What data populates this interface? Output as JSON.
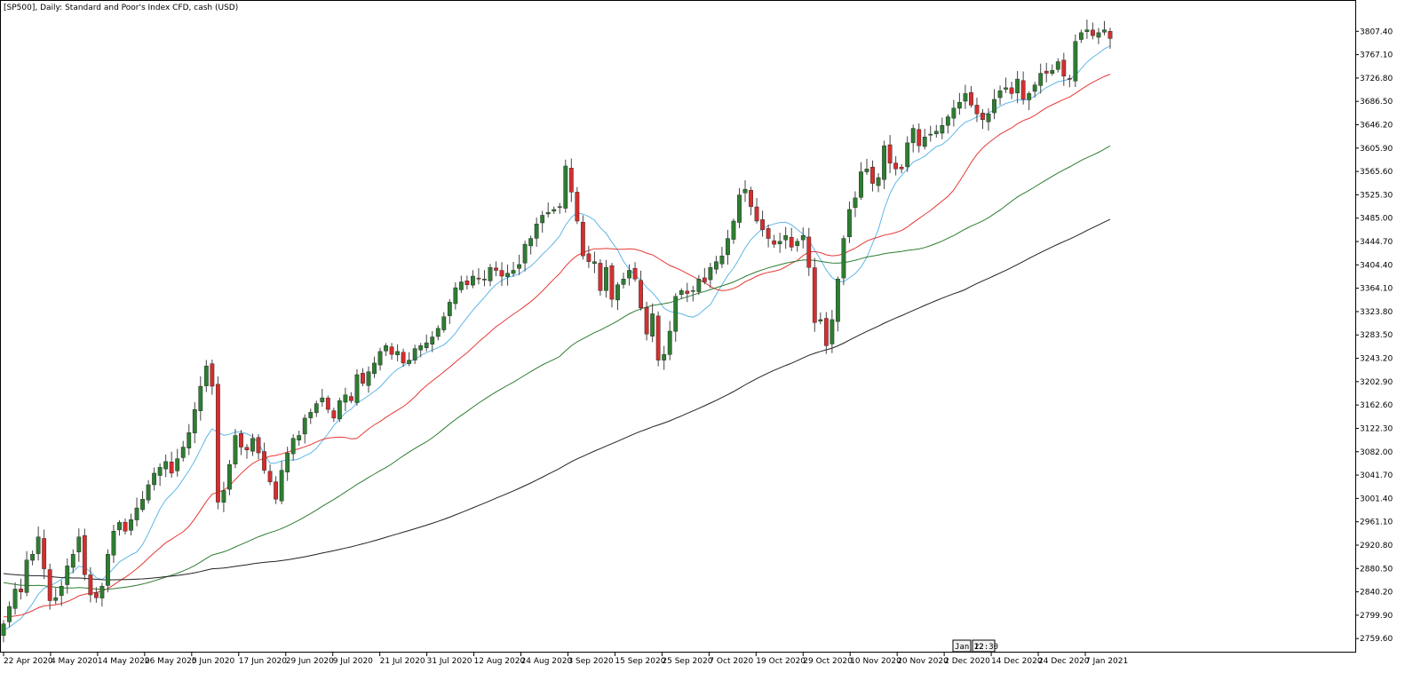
{
  "window": {
    "title": "[SP500], Daily:  Standard and Poor's Index CFD, cash (USD)"
  },
  "colors": {
    "bull": "#2e7d32",
    "bear": "#d32f2f",
    "wick": "#444444",
    "ma_fast": "#5fb7e8",
    "ma_mid": "#e53935",
    "ma_slow": "#2e7d32",
    "ma_long": "#222222",
    "axis": "#000000"
  },
  "marker": {
    "left_label": "Jan 12",
    "right_label": "22:30"
  },
  "chart_data": {
    "type": "candlestick",
    "title": "[SP500], Daily:  Standard and Poor's Index CFD, cash (USD)",
    "ylim": [
      2740,
      3840
    ],
    "grid": false,
    "y_ticks": [
      "3807.40",
      "3767.10",
      "3726.80",
      "3686.50",
      "3646.20",
      "3605.90",
      "3565.60",
      "3525.30",
      "3485.00",
      "3444.70",
      "3404.40",
      "3364.10",
      "3323.80",
      "3283.50",
      "3243.20",
      "3202.90",
      "3162.60",
      "3122.30",
      "3082.00",
      "3041.70",
      "3001.40",
      "2961.10",
      "2920.80",
      "2880.50",
      "2840.20",
      "2799.90",
      "2759.60"
    ],
    "x_ticks": [
      "22 Apr 2020",
      "4 May 2020",
      "14 May 2020",
      "26 May 2020",
      "5 Jun 2020",
      "17 Jun 2020",
      "29 Jun 2020",
      "9 Jul 2020",
      "21 Jul 2020",
      "31 Jul 2020",
      "12 Aug 2020",
      "24 Aug 2020",
      "3 Sep 2020",
      "15 Sep 2020",
      "25 Sep 2020",
      "7 Oct 2020",
      "19 Oct 2020",
      "29 Oct 2020",
      "10 Nov 2020",
      "20 Nov 2020",
      "2 Dec 2020",
      "14 Dec 2020",
      "24 Dec 2020",
      "7 Jan 2021"
    ],
    "close_series": [
      2785,
      2815,
      2845,
      2840,
      2895,
      2905,
      2935,
      2880,
      2825,
      2830,
      2850,
      2885,
      2905,
      2935,
      2870,
      2835,
      2830,
      2850,
      2905,
      2945,
      2960,
      2945,
      2965,
      2985,
      3000,
      3025,
      3045,
      3055,
      3065,
      3045,
      3070,
      3090,
      3115,
      3155,
      3195,
      3230,
      3195,
      2995,
      3015,
      3060,
      3110,
      3090,
      3085,
      3105,
      3080,
      3050,
      3030,
      3000,
      3050,
      3080,
      3105,
      3110,
      3140,
      3150,
      3165,
      3175,
      3155,
      3140,
      3170,
      3180,
      3170,
      3215,
      3200,
      3220,
      3235,
      3255,
      3265,
      3250,
      3255,
      3235,
      3240,
      3260,
      3265,
      3270,
      3280,
      3295,
      3315,
      3340,
      3365,
      3375,
      3370,
      3385,
      3380,
      3380,
      3400,
      3395,
      3385,
      3390,
      3395,
      3405,
      3440,
      3450,
      3475,
      3490,
      3495,
      3500,
      3505,
      3575,
      3530,
      3480,
      3420,
      3410,
      3410,
      3360,
      3400,
      3345,
      3370,
      3380,
      3395,
      3380,
      3330,
      3285,
      3320,
      3240,
      3250,
      3290,
      3350,
      3360,
      3355,
      3360,
      3380,
      3375,
      3400,
      3410,
      3420,
      3450,
      3480,
      3525,
      3535,
      3505,
      3480,
      3465,
      3450,
      3440,
      3445,
      3455,
      3435,
      3445,
      3455,
      3400,
      3305,
      3310,
      3265,
      3310,
      3380,
      3450,
      3500,
      3520,
      3565,
      3570,
      3545,
      3555,
      3610,
      3580,
      3570,
      3570,
      3615,
      3640,
      3610,
      3625,
      3630,
      3635,
      3645,
      3660,
      3675,
      3685,
      3700,
      3680,
      3665,
      3655,
      3665,
      3690,
      3705,
      3710,
      3700,
      3725,
      3690,
      3700,
      3715,
      3735,
      3735,
      3740,
      3755,
      3730,
      3725,
      3790,
      3805,
      3810,
      3800,
      3805,
      3810,
      3795
    ]
  }
}
